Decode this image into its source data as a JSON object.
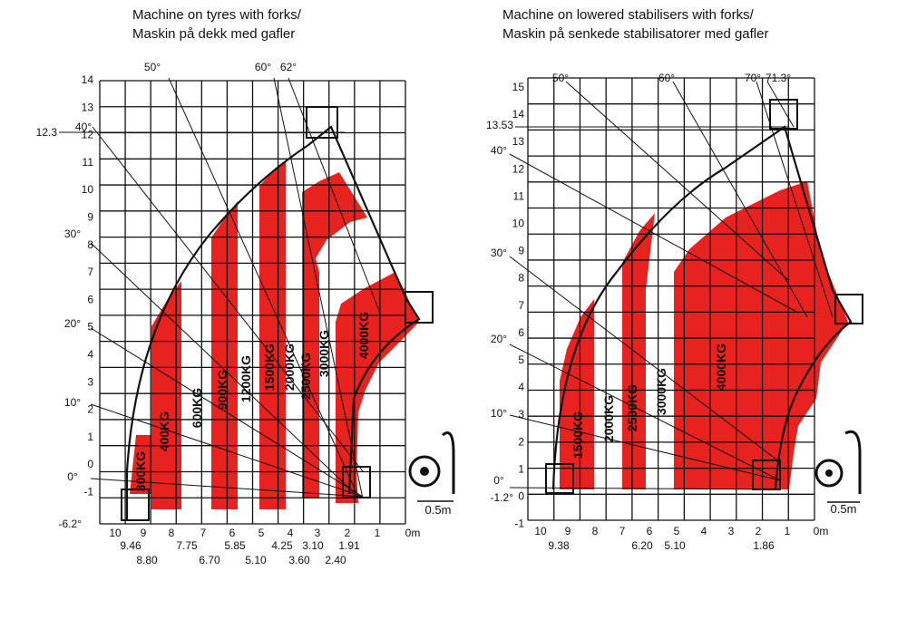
{
  "colors": {
    "load_zone": "#e8221f",
    "grid": "#111111",
    "background": "#ffffff"
  },
  "charts": [
    {
      "id": "tyres",
      "title_en": "Machine on tyres with forks/",
      "title_no": "Maskin på dekk med gafler",
      "y_labels": [
        "14",
        "13",
        "12",
        "11",
        "10",
        "9",
        "8",
        "7",
        "6",
        "5",
        "4",
        "3",
        "2",
        "1",
        "0",
        "-1"
      ],
      "x_labels": [
        "10",
        "9",
        "8",
        "7",
        "6",
        "5",
        "4",
        "3",
        "2",
        "1",
        "0m"
      ],
      "left_callouts": [
        "12.3",
        "-6.2°"
      ],
      "angles": [
        "40°",
        "30°",
        "20°",
        "10°",
        "0°",
        "50°",
        "60°",
        "62°"
      ],
      "loads": [
        "300KG",
        "400KG",
        "600KG",
        "900KG",
        "1200KG",
        "1500KG",
        "2000KG",
        "2500KG",
        "3000KG",
        "4000KG"
      ],
      "reach_marks_top": [
        "9.46",
        "7.75",
        "5.85",
        "4.25",
        "3.10",
        "1.91"
      ],
      "reach_marks_bottom": [
        "8.80",
        "6.70",
        "5.10",
        "3.60",
        "2.40"
      ],
      "scale_label": "0.5m"
    },
    {
      "id": "stabilisers",
      "title_en": "Machine on lowered stabilisers with forks/",
      "title_no": "Maskin på senkede stabilisatorer med gafler",
      "y_labels": [
        "15",
        "14",
        "13",
        "12",
        "11",
        "10",
        "9",
        "8",
        "7",
        "6",
        "5",
        "4",
        "3",
        "2",
        "1",
        "0",
        "-1"
      ],
      "x_labels": [
        "10",
        "9",
        "8",
        "7",
        "6",
        "5",
        "4",
        "3",
        "2",
        "1",
        "0m"
      ],
      "left_callouts": [
        "13.53",
        "-1.2°"
      ],
      "angles": [
        "40°",
        "30°",
        "20°",
        "10°",
        "0°",
        "50°",
        "60°",
        "70°",
        "71.3°"
      ],
      "loads": [
        "1500KG",
        "2000KG",
        "2500KG",
        "3000KG",
        "4000KG"
      ],
      "reach_marks_top": [
        "9.38",
        "6.20",
        "5.10",
        "1.86"
      ],
      "reach_marks_bottom": [],
      "scale_label": "0.5m"
    }
  ]
}
